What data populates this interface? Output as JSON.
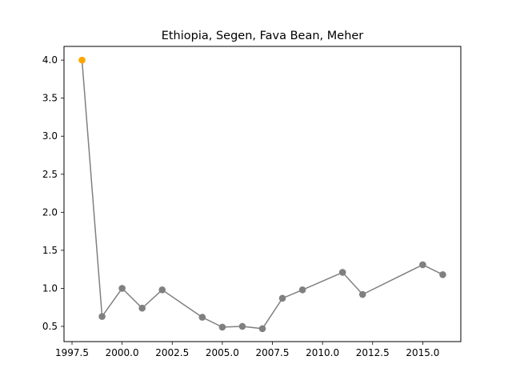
{
  "chart_data": {
    "type": "line",
    "title": "Ethiopia, Segen, Fava Bean, Meher",
    "xlabel": "",
    "ylabel": "",
    "xlim": [
      1997.1,
      2016.9
    ],
    "ylim": [
      0.3,
      4.18
    ],
    "xticks": [
      1997.5,
      2000.0,
      2002.5,
      2005.0,
      2007.5,
      2010.0,
      2012.5,
      2015.0
    ],
    "xtick_labels": [
      "1997.5",
      "2000.0",
      "2002.5",
      "2005.0",
      "2007.5",
      "2010.0",
      "2012.5",
      "2015.0"
    ],
    "yticks": [
      0.5,
      1.0,
      1.5,
      2.0,
      2.5,
      3.0,
      3.5,
      4.0
    ],
    "ytick_labels": [
      "0.5",
      "1.0",
      "1.5",
      "2.0",
      "2.5",
      "3.0",
      "3.5",
      "4.0"
    ],
    "grid": false,
    "legend": "none",
    "series": [
      {
        "color": "#808080",
        "x": [
          1999,
          2000,
          2001,
          2002,
          2004,
          2005,
          2006,
          2007,
          2008,
          2009,
          2011,
          2012,
          2015,
          2016
        ],
        "y": [
          0.63,
          1.0,
          0.74,
          0.98,
          0.62,
          0.49,
          0.5,
          0.47,
          0.87,
          0.98,
          1.21,
          0.92,
          1.31,
          1.18
        ]
      }
    ],
    "highlight": {
      "color": "#ffa500",
      "x": 1998,
      "y": 4.0
    }
  }
}
